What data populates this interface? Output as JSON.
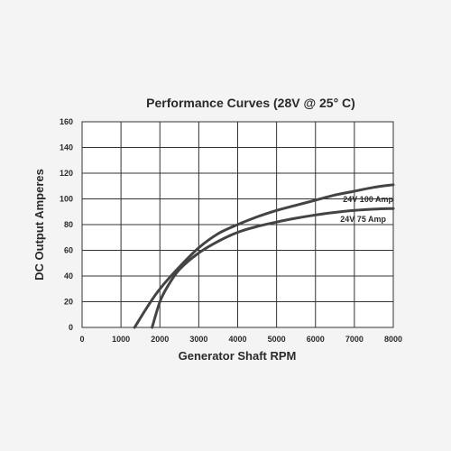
{
  "chart_data": {
    "type": "line",
    "title": "Performance Curves (28V @ 25° C)",
    "xlabel": "Generator Shaft RPM",
    "ylabel": "DC Output Amperes",
    "xlim": [
      0,
      8000
    ],
    "ylim": [
      0,
      160
    ],
    "x_ticks": [
      0,
      1000,
      2000,
      3000,
      4000,
      5000,
      6000,
      7000,
      8000
    ],
    "y_ticks": [
      0,
      20,
      40,
      60,
      80,
      100,
      120,
      140,
      160
    ],
    "grid": true,
    "series": [
      {
        "name": "24V 100 Amp",
        "x": [
          1350,
          1700,
          2000,
          2500,
          3000,
          3500,
          4000,
          4500,
          5000,
          5500,
          6000,
          6500,
          7000,
          7500,
          8000
        ],
        "y": [
          0,
          17,
          30,
          47,
          62,
          73,
          80,
          86,
          91,
          95,
          99,
          103,
          106,
          109,
          111
        ]
      },
      {
        "name": "24V 75 Amp",
        "x": [
          1800,
          2000,
          2200,
          2500,
          3000,
          3500,
          4000,
          4500,
          5000,
          5500,
          6000,
          6500,
          7000,
          7500,
          8000
        ],
        "y": [
          0,
          20,
          32,
          45,
          58,
          67,
          74,
          78.5,
          82,
          85,
          87.5,
          89.5,
          91,
          92,
          92.5
        ]
      }
    ]
  }
}
